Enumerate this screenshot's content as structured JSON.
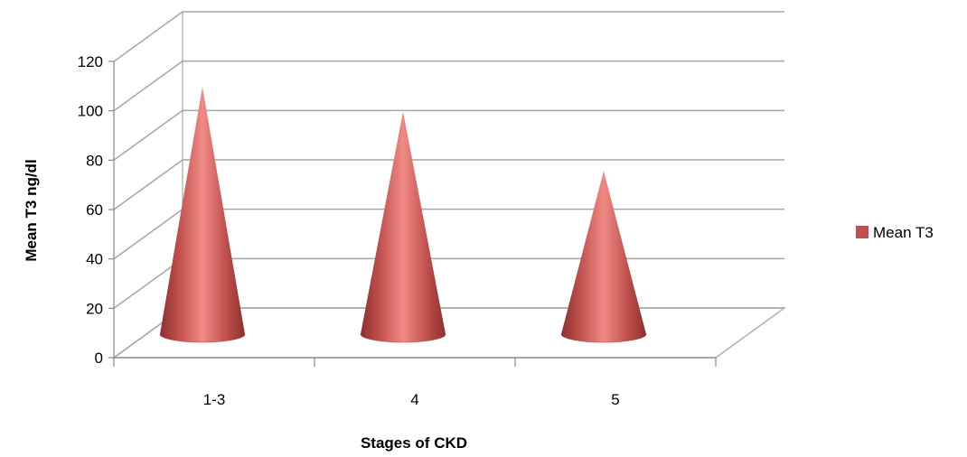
{
  "chart_data": {
    "type": "bar",
    "style": "3d-cone",
    "categories": [
      "1-3",
      "4",
      "5"
    ],
    "series": [
      {
        "name": "Mean T3",
        "values": [
          106,
          96,
          72
        ],
        "color": "#c0504d"
      }
    ],
    "xlabel": "Stages of CKD",
    "ylabel": "Mean T3 ng/dl",
    "ylim": [
      0,
      120
    ],
    "yticks": [
      "0",
      "20",
      "40",
      "60",
      "80",
      "100",
      "120"
    ],
    "grid": true,
    "legend": "right"
  }
}
